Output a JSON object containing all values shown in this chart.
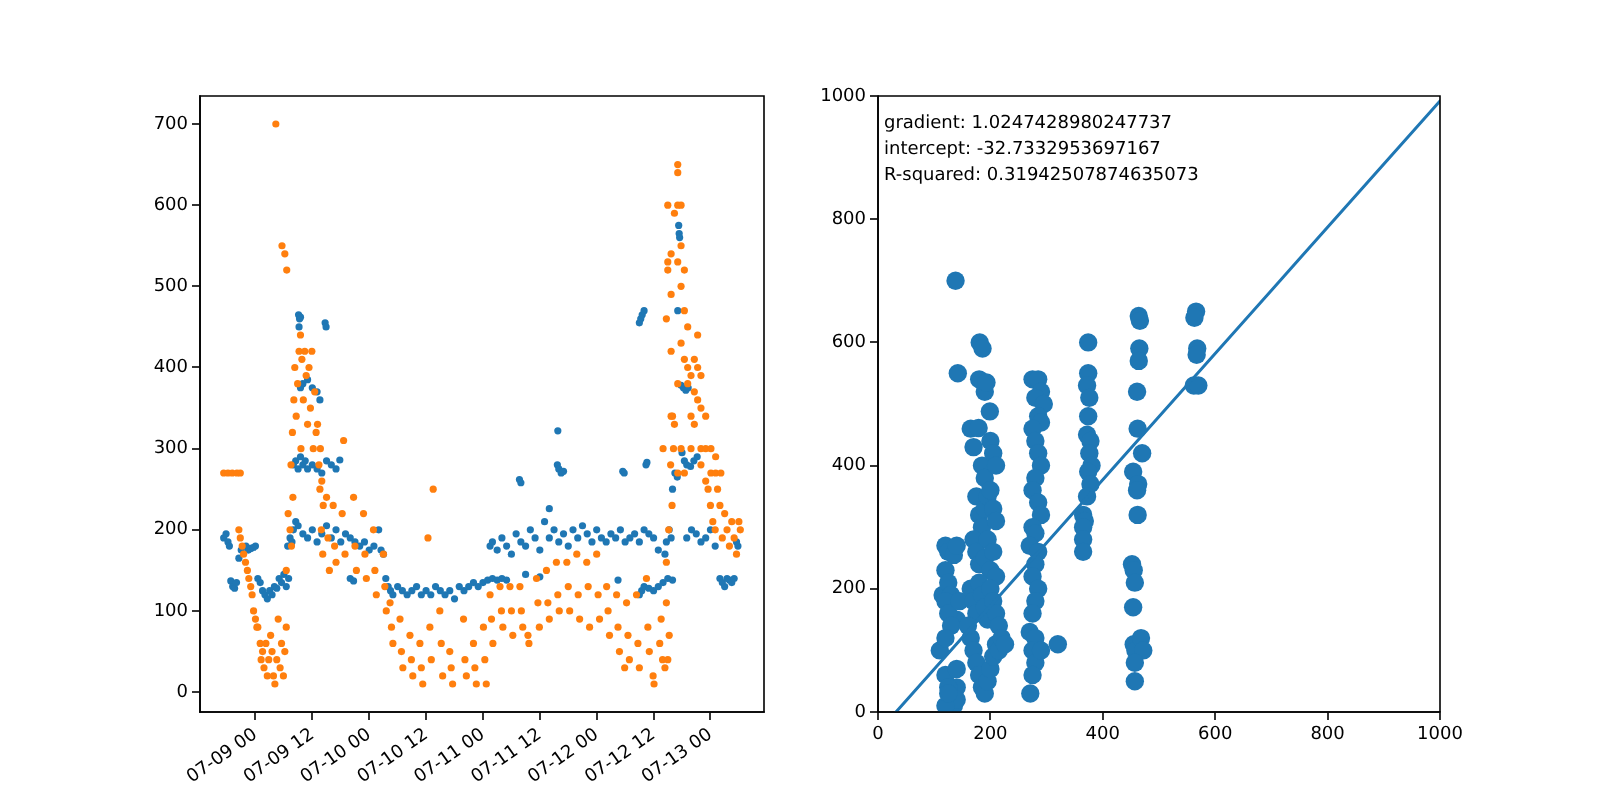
{
  "chart_data": [
    {
      "type": "scatter",
      "xlim": [
        "--07-08T12:18",
        "--07-13T11:18"
      ],
      "xticks": [
        {
          "value": "--07-09T00:00",
          "label": "07-09 00"
        },
        {
          "value": "--07-09T12:00",
          "label": "07-09 12"
        },
        {
          "value": "--07-10T00:00",
          "label": "07-10 00"
        },
        {
          "value": "--07-10T12:00",
          "label": "07-10 12"
        },
        {
          "value": "--07-11T00:00",
          "label": "07-11 00"
        },
        {
          "value": "--07-11T12:00",
          "label": "07-11 12"
        },
        {
          "value": "--07-12T00:00",
          "label": "07-12 00"
        },
        {
          "value": "--07-12T12:00",
          "label": "07-12 12"
        },
        {
          "value": "--07-13T00:00",
          "label": "07-13 00"
        }
      ],
      "ylim": [
        -24.5,
        734.5
      ],
      "yticks": [
        0,
        100,
        200,
        300,
        400,
        500,
        600,
        700
      ],
      "marker": "circle",
      "series": [
        {
          "color": "#1f77b4",
          "x": [
            "--07-08T17:18",
            "--07-08T17:48",
            "--07-08T18:12",
            "--07-08T18:30",
            "--07-08T18:48",
            "--07-08T19:12",
            "--07-08T19:36",
            "--07-08T20:00",
            "--07-08T20:30",
            "--07-08T21:00",
            "--07-08T22:00",
            "--07-08T22:30",
            "--07-08T23:00",
            "--07-08T23:30",
            "--07-09T00:00",
            "--07-09T00:30",
            "--07-09T01:00",
            "--07-09T01:30",
            "--07-09T02:00",
            "--07-09T02:30",
            "--07-09T03:00",
            "--07-09T03:30",
            "--07-09T04:00",
            "--07-09T04:30",
            "--07-09T05:00",
            "--07-09T05:30",
            "--07-09T06:00",
            "--07-09T06:30",
            "--07-09T07:00",
            "--07-09T06:48",
            "--07-09T07:18",
            "--07-09T07:42",
            "--07-09T08:00",
            "--07-09T08:30",
            "--07-09T09:00",
            "--07-09T08:00",
            "--07-09T08:30",
            "--07-09T09:00",
            "--07-09T09:30",
            "--07-09T10:00",
            "--07-09T10:30",
            "--07-09T11:00",
            "--07-09T12:00",
            "--07-09T13:00",
            "--07-09T14:00",
            "--07-09T15:00",
            "--07-09T16:00",
            "--07-09T17:00",
            "--07-09T17:48",
            "--07-09T09:06",
            "--07-09T09:18",
            "--07-09T09:30",
            "--07-09T09:12",
            "--07-09T14:42",
            "--07-09T14:54",
            "--07-09T09:30",
            "--07-09T10:00",
            "--07-09T11:00",
            "--07-09T12:00",
            "--07-09T13:00",
            "--07-09T13:36",
            "--07-09T10:00",
            "--07-09T11:00",
            "--07-09T12:00",
            "--07-09T13:00",
            "--07-09T14:00",
            "--07-09T15:00",
            "--07-09T16:00",
            "--07-09T17:00",
            "--07-09T18:00",
            "--07-09T19:00",
            "--07-09T20:00",
            "--07-09T21:00",
            "--07-09T22:00",
            "--07-09T23:00",
            "--07-10T00:00",
            "--07-10T01:00",
            "--07-10T02:00",
            "--07-10T02:30",
            "--07-10T03:00",
            "--07-09T20:00",
            "--07-09T20:42",
            "--07-10T03:30",
            "--07-10T04:00",
            "--07-10T04:30",
            "--07-10T05:00",
            "--07-10T06:00",
            "--07-10T07:00",
            "--07-10T08:00",
            "--07-10T09:00",
            "--07-10T10:00",
            "--07-10T11:00",
            "--07-10T12:00",
            "--07-10T13:00",
            "--07-10T14:00",
            "--07-10T15:00",
            "--07-10T16:00",
            "--07-10T17:00",
            "--07-10T18:00",
            "--07-10T19:00",
            "--07-10T20:00",
            "--07-10T21:00",
            "--07-10T22:00",
            "--07-10T23:00",
            "--07-11T00:00",
            "--07-11T01:00",
            "--07-11T02:00",
            "--07-11T03:00",
            "--07-11T04:00",
            "--07-11T05:00",
            "--07-11T01:30",
            "--07-11T02:00",
            "--07-11T03:00",
            "--07-11T04:00",
            "--07-11T05:00",
            "--07-11T06:00",
            "--07-11T07:00",
            "--07-11T08:00",
            "--07-11T09:00",
            "--07-11T10:00",
            "--07-11T11:00",
            "--07-11T12:00",
            "--07-11T13:00",
            "--07-11T14:00",
            "--07-11T15:00",
            "--07-11T16:00",
            "--07-11T17:00",
            "--07-11T18:00",
            "--07-11T19:00",
            "--07-11T20:00",
            "--07-11T21:00",
            "--07-11T22:00",
            "--07-11T23:00",
            "--07-12T00:00",
            "--07-12T01:00",
            "--07-12T02:00",
            "--07-12T03:00",
            "--07-12T04:00",
            "--07-12T05:00",
            "--07-12T06:00",
            "--07-12T07:00",
            "--07-12T08:00",
            "--07-12T09:00",
            "--07-12T10:00",
            "--07-12T11:00",
            "--07-12T12:00",
            "--07-12T13:00",
            "--07-11T07:42",
            "--07-11T08:00",
            "--07-11T15:48",
            "--07-11T15:42",
            "--07-11T16:00",
            "--07-11T16:30",
            "--07-11T17:00",
            "--07-12T05:30",
            "--07-12T05:48",
            "--07-12T10:24",
            "--07-12T10:36",
            "--07-11T12:00",
            "--07-11T14:00",
            "--07-11T09:00",
            "--07-12T04:30",
            "--07-12T09:00",
            "--07-12T09:30",
            "--07-12T10:00",
            "--07-12T11:00",
            "--07-12T12:00",
            "--07-12T13:00",
            "--07-12T14:00",
            "--07-12T15:00",
            "--07-12T16:00",
            "--07-12T09:00",
            "--07-12T09:18",
            "--07-12T09:36",
            "--07-12T10:00",
            "--07-12T17:18",
            "--07-12T17:24",
            "--07-12T17:30",
            "--07-12T17:06",
            "--07-12T17:48",
            "--07-12T18:18",
            "--07-12T18:48",
            "--07-12T19:18",
            "--07-12T18:00",
            "--07-12T18:30",
            "--07-12T19:00",
            "--07-12T19:48",
            "--07-12T20:30",
            "--07-12T21:12",
            "--07-12T14:24",
            "--07-12T14:42",
            "--07-12T15:18",
            "--07-12T15:42",
            "--07-12T16:00",
            "--07-12T16:30",
            "--07-12T17:00",
            "--07-12T19:00",
            "--07-12T20:00",
            "--07-12T21:00",
            "--07-12T22:00",
            "--07-12T23:00",
            "--07-13T00:00",
            "--07-13T01:00",
            "--07-13T02:00",
            "--07-13T02:30",
            "--07-13T03:00",
            "--07-13T03:30",
            "--07-13T04:00",
            "--07-13T04:30",
            "--07-13T05:00",
            "--07-13T05:30",
            "--07-13T05:48"
          ],
          "values": [
            190,
            195,
            185,
            180,
            137,
            130,
            128,
            135,
            165,
            175,
            180,
            175,
            177,
            178,
            180,
            140,
            135,
            125,
            120,
            115,
            125,
            120,
            130,
            128,
            140,
            135,
            145,
            130,
            140,
            180,
            190,
            185,
            200,
            210,
            205,
            280,
            285,
            275,
            290,
            280,
            285,
            275,
            280,
            275,
            270,
            285,
            280,
            275,
            286,
            465,
            460,
            462,
            450,
            455,
            450,
            375,
            380,
            385,
            375,
            370,
            360,
            195,
            190,
            200,
            185,
            195,
            205,
            190,
            200,
            185,
            195,
            190,
            185,
            180,
            185,
            175,
            180,
            200,
            175,
            170,
            140,
            137,
            140,
            130,
            125,
            120,
            130,
            125,
            120,
            125,
            130,
            120,
            125,
            120,
            130,
            125,
            120,
            125,
            115,
            130,
            125,
            130,
            135,
            130,
            135,
            138,
            140,
            138,
            140,
            138,
            180,
            185,
            175,
            190,
            180,
            170,
            195,
            185,
            180,
            200,
            190,
            175,
            210,
            190,
            200,
            185,
            195,
            180,
            200,
            190,
            205,
            195,
            185,
            200,
            190,
            185,
            195,
            190,
            200,
            185,
            190,
            195,
            185,
            200,
            195,
            190,
            175,
            262,
            258,
            322,
            280,
            275,
            270,
            272,
            272,
            270,
            280,
            283,
            142,
            226,
            145,
            138,
            120,
            125,
            130,
            128,
            125,
            130,
            135,
            140,
            138,
            455,
            460,
            465,
            470,
            575,
            565,
            560,
            470,
            378,
            375,
            372,
            375,
            295,
            285,
            280,
            278,
            285,
            290,
            170,
            185,
            200,
            190,
            250,
            270,
            265,
            190,
            200,
            195,
            185,
            190,
            200,
            180,
            140,
            135,
            130,
            140,
            138,
            135,
            140,
            185,
            180
          ]
        },
        {
          "color": "#ff7f0e",
          "x": [
            "--07-08T17:18",
            "--07-08T18:12",
            "--07-08T19:06",
            "--07-08T20:06",
            "--07-08T20:48",
            "--07-08T20:30",
            "--07-08T20:48",
            "--07-08T21:12",
            "--07-08T21:30",
            "--07-08T21:54",
            "--07-08T22:18",
            "--07-08T22:36",
            "--07-08T23:00",
            "--07-08T23:18",
            "--07-08T23:36",
            "--07-09T00:00",
            "--07-09T00:18",
            "--07-09T00:30",
            "--07-09T01:00",
            "--07-09T01:12",
            "--07-09T01:30",
            "--07-09T01:48",
            "--07-09T02:12",
            "--07-09T02:30",
            "--07-09T02:48",
            "--07-09T03:12",
            "--07-09T03:30",
            "--07-09T03:48",
            "--07-09T04:06",
            "--07-09T04:30",
            "--07-09T04:48",
            "--07-09T05:12",
            "--07-09T05:30",
            "--07-09T05:54",
            "--07-09T06:12",
            "--07-09T06:30",
            "--07-09T04:18",
            "--07-09T05:36",
            "--07-09T06:12",
            "--07-09T06:36",
            "--07-09T06:30",
            "--07-09T06:54",
            "--07-09T07:18",
            "--07-09T07:36",
            "--07-09T07:54",
            "--07-09T07:30",
            "--07-09T07:48",
            "--07-09T08:06",
            "--07-09T08:18",
            "--07-09T08:36",
            "--07-09T08:54",
            "--07-09T09:12",
            "--07-09T09:30",
            "--07-09T09:36",
            "--07-09T09:48",
            "--07-09T10:06",
            "--07-09T10:24",
            "--07-09T10:42",
            "--07-09T11:00",
            "--07-09T11:18",
            "--07-09T11:36",
            "--07-09T11:54",
            "--07-09T12:12",
            "--07-09T12:30",
            "--07-09T12:48",
            "--07-09T13:06",
            "--07-09T13:24",
            "--07-09T13:42",
            "--07-09T14:00",
            "--07-09T14:18",
            "--07-09T13:36",
            "--07-09T13:54",
            "--07-09T14:12",
            "--07-09T15:00",
            "--07-09T15:18",
            "--07-09T15:36",
            "--07-09T16:24",
            "--07-09T16:42",
            "--07-09T17:00",
            "--07-09T18:18",
            "--07-09T18:36",
            "--07-09T18:54",
            "--07-09T20:42",
            "--07-09T21:00",
            "--07-09T21:18",
            "--07-09T22:48",
            "--07-09T23:06",
            "--07-09T23:24",
            "--07-10T00:54",
            "--07-10T01:12",
            "--07-10T01:30",
            "--07-10T03:00",
            "--07-10T03:18",
            "--07-10T03:36",
            "--07-10T04:24",
            "--07-10T04:42",
            "--07-10T05:00",
            "--07-10T06:30",
            "--07-10T06:48",
            "--07-10T07:06",
            "--07-10T08:36",
            "--07-10T08:54",
            "--07-10T09:12",
            "--07-10T10:42",
            "--07-10T11:00",
            "--07-10T11:18",
            "--07-10T12:24",
            "--07-10T13:30",
            "--07-10T12:48",
            "--07-10T13:06",
            "--07-10T14:54",
            "--07-10T15:12",
            "--07-10T15:30",
            "--07-10T17:00",
            "--07-10T17:18",
            "--07-10T17:36",
            "--07-10T19:54",
            "--07-10T20:12",
            "--07-10T20:30",
            "--07-10T22:00",
            "--07-10T22:18",
            "--07-10T22:36",
            "--07-11T00:06",
            "--07-11T00:24",
            "--07-11T00:42",
            "--07-11T01:30",
            "--07-11T01:48",
            "--07-11T02:06",
            "--07-11T03:36",
            "--07-11T03:54",
            "--07-11T04:12",
            "--07-11T05:42",
            "--07-11T06:00",
            "--07-11T06:18",
            "--07-11T07:48",
            "--07-11T08:06",
            "--07-11T08:24",
            "--07-11T09:30",
            "--07-11T09:42",
            "--07-11T11:18",
            "--07-11T11:36",
            "--07-11T11:54",
            "--07-11T13:24",
            "--07-11T13:42",
            "--07-11T14:00",
            "--07-11T15:30",
            "--07-11T15:48",
            "--07-11T16:06",
            "--07-11T17:42",
            "--07-11T18:00",
            "--07-11T18:18",
            "--07-11T19:48",
            "--07-11T20:06",
            "--07-11T20:24",
            "--07-11T21:54",
            "--07-11T22:12",
            "--07-11T22:30",
            "--07-12T00:00",
            "--07-12T00:18",
            "--07-12T00:36",
            "--07-12T02:06",
            "--07-12T02:24",
            "--07-12T02:42",
            "--07-12T04:12",
            "--07-12T04:30",
            "--07-12T04:48",
            "--07-12T05:54",
            "--07-12T06:18",
            "--07-12T06:36",
            "--07-12T06:54",
            "--07-12T08:24",
            "--07-12T08:42",
            "--07-12T09:00",
            "--07-12T10:30",
            "--07-12T10:48",
            "--07-12T11:06",
            "--07-12T11:54",
            "--07-12T12:06",
            "--07-12T13:18",
            "--07-12T13:36",
            "--07-12T13:54",
            "--07-12T14:24",
            "--07-12T14:42",
            "--07-12T15:00",
            "--07-12T15:18",
            "--07-12T14:42",
            "--07-12T15:12",
            "--07-12T15:36",
            "--07-12T16:00",
            "--07-12T16:12",
            "--07-12T15:54",
            "--07-12T14:00",
            "--07-12T14:42",
            "--07-12T15:00",
            "--07-12T15:00",
            "--07-12T15:00",
            "--07-12T15:42",
            "--07-12T15:42",
            "--07-12T15:42",
            "--07-12T15:42",
            "--07-12T16:24",
            "--07-12T16:24",
            "--07-12T17:06",
            "--07-12T17:06",
            "--07-12T17:06",
            "--07-12T17:06",
            "--07-12T17:06",
            "--07-12T17:06",
            "--07-12T17:48",
            "--07-12T17:48",
            "--07-12T17:48",
            "--07-12T17:48",
            "--07-12T17:48",
            "--07-12T18:30",
            "--07-12T18:30",
            "--07-12T18:30",
            "--07-12T18:30",
            "--07-12T19:12",
            "--07-12T19:12",
            "--07-12T19:12",
            "--07-12T19:54",
            "--07-12T19:54",
            "--07-12T19:54",
            "--07-12T20:36",
            "--07-12T20:36",
            "--07-12T20:36",
            "--07-12T21:18",
            "--07-12T21:18",
            "--07-12T21:18",
            "--07-12T22:00",
            "--07-12T22:00",
            "--07-12T22:00",
            "--07-12T22:00",
            "--07-12T23:00",
            "--07-12T23:00",
            "--07-12T23:00",
            "--07-13T00:06",
            "--07-13T00:06",
            "--07-13T01:06",
            "--07-13T01:06",
            "--07-13T02:12",
            "--07-12T23:30",
            "--07-13T00:00",
            "--07-13T00:30",
            "--07-13T01:00",
            "--07-13T01:30",
            "--07-13T02:00",
            "--07-13T02:30",
            "--07-13T03:00",
            "--07-13T03:30",
            "--07-13T04:00",
            "--07-13T04:30",
            "--07-13T05:00",
            "--07-13T05:30",
            "--07-13T06:00",
            "--07-13T06:18"
          ],
          "values": [
            270,
            270,
            270,
            270,
            270,
            200,
            190,
            180,
            170,
            160,
            150,
            140,
            130,
            120,
            100,
            90,
            80,
            80,
            60,
            40,
            50,
            30,
            60,
            20,
            40,
            70,
            50,
            20,
            10,
            40,
            90,
            30,
            60,
            20,
            50,
            80,
            700,
            550,
            540,
            520,
            150,
            220,
            200,
            180,
            240,
            280,
            320,
            360,
            400,
            340,
            380,
            420,
            440,
            300,
            410,
            360,
            420,
            390,
            330,
            400,
            350,
            420,
            300,
            370,
            320,
            330,
            280,
            300,
            260,
            230,
            250,
            200,
            170,
            240,
            190,
            150,
            230,
            180,
            160,
            220,
            310,
            170,
            240,
            180,
            150,
            220,
            170,
            140,
            200,
            150,
            120,
            170,
            130,
            100,
            110,
            80,
            60,
            90,
            50,
            30,
            70,
            40,
            20,
            60,
            30,
            10,
            190,
            250,
            80,
            40,
            100,
            60,
            20,
            50,
            30,
            10,
            90,
            40,
            20,
            60,
            30,
            10,
            80,
            40,
            10,
            120,
            90,
            60,
            130,
            100,
            80,
            130,
            100,
            70,
            130,
            100,
            80,
            70,
            60,
            140,
            110,
            80,
            150,
            110,
            90,
            160,
            120,
            100,
            160,
            130,
            100,
            170,
            120,
            90,
            160,
            130,
            80,
            170,
            120,
            90,
            130,
            100,
            70,
            120,
            80,
            50,
            30,
            110,
            70,
            40,
            120,
            60,
            30,
            140,
            80,
            50,
            20,
            10,
            60,
            90,
            40,
            30,
            110,
            40,
            70,
            160,
            200,
            280,
            340,
            300,
            230,
            300,
            460,
            600,
            530,
            520,
            490,
            420,
            340,
            540,
            590,
            330,
            650,
            640,
            600,
            530,
            380,
            270,
            600,
            550,
            500,
            430,
            300,
            520,
            470,
            410,
            270,
            450,
            400,
            380,
            390,
            340,
            300,
            410,
            370,
            330,
            440,
            400,
            360,
            390,
            350,
            300,
            280,
            340,
            300,
            260,
            300,
            270,
            290,
            270,
            270,
            250,
            230,
            210,
            200,
            250,
            230,
            190,
            220,
            200,
            180,
            210,
            190,
            170,
            210,
            200
          ]
        }
      ]
    },
    {
      "type": "scatter",
      "xlim": [
        0,
        1000
      ],
      "xticks": [
        0,
        200,
        400,
        600,
        800,
        1000
      ],
      "ylim": [
        0,
        1000
      ],
      "yticks": [
        0,
        200,
        400,
        600,
        800,
        1000
      ],
      "marker": "circle",
      "annotations": [
        "gradient: 1.0247428980247737",
        "intercept: -32.7332953697167",
        "R-squared: 0.31942507874635073"
      ],
      "series": [
        {
          "color": "#1f77b4",
          "x": [
            110,
            115,
            120,
            125,
            135,
            140,
            120,
            125,
            130,
            140,
            120,
            125,
            130,
            120,
            140,
            120,
            125,
            135,
            140,
            120,
            125,
            140,
            145,
            138,
            142,
            165,
            170,
            185,
            190,
            200,
            205,
            210,
            175,
            180,
            185,
            190,
            195,
            200,
            205,
            210,
            170,
            175,
            180,
            190,
            195,
            200,
            205,
            210,
            165,
            170,
            175,
            180,
            185,
            190,
            195,
            200,
            205,
            210,
            215,
            165,
            170,
            175,
            180,
            185,
            190,
            195,
            200,
            205,
            210,
            215,
            220,
            226,
            160,
            181,
            186,
            180,
            190,
            193,
            199,
            179,
            275,
            285,
            290,
            280,
            295,
            285,
            290,
            275,
            280,
            285,
            290,
            280,
            275,
            285,
            290,
            275,
            280,
            270,
            285,
            280,
            275,
            285,
            280,
            275,
            270,
            280,
            275,
            280,
            290,
            271,
            275,
            320,
            374,
            374,
            372,
            376,
            374,
            372,
            378,
            376,
            380,
            374,
            378,
            372,
            365,
            368,
            365,
            365,
            365,
            464,
            466,
            465,
            464,
            461,
            462,
            454,
            470,
            463,
            461,
            462,
            452,
            455,
            457,
            454,
            455,
            458,
            468,
            472,
            457,
            457,
            566,
            563,
            568,
            567,
            562,
            570
          ],
          "values": [
            100,
            190,
            270,
            260,
            255,
            270,
            230,
            210,
            190,
            150,
            180,
            160,
            140,
            120,
            40,
            60,
            40,
            10,
            20,
            10,
            30,
            70,
            180,
            700,
            550,
            460,
            430,
            400,
            380,
            440,
            420,
            400,
            350,
            320,
            300,
            330,
            350,
            360,
            330,
            310,
            280,
            260,
            240,
            250,
            280,
            230,
            260,
            220,
            200,
            180,
            160,
            210,
            190,
            170,
            150,
            200,
            180,
            160,
            140,
            120,
            100,
            80,
            60,
            40,
            30,
            50,
            70,
            90,
            110,
            100,
            120,
            110,
            140,
            600,
            590,
            540,
            520,
            535,
            488,
            461,
            540,
            540,
            520,
            510,
            500,
            480,
            470,
            460,
            440,
            420,
            400,
            380,
            360,
            340,
            320,
            300,
            290,
            270,
            260,
            240,
            220,
            200,
            180,
            160,
            130,
            120,
            100,
            80,
            100,
            30,
            60,
            110,
            600,
            550,
            530,
            510,
            480,
            450,
            440,
            420,
            400,
            390,
            370,
            350,
            320,
            310,
            300,
            280,
            260,
            643,
            635,
            590,
            570,
            520,
            460,
            390,
            420,
            370,
            360,
            320,
            240,
            230,
            210,
            170,
            110,
            100,
            120,
            100,
            80,
            50,
            650,
            640,
            590,
            580,
            530,
            530
          ]
        },
        {
          "type": "line",
          "color": "#1f77b4",
          "marker": "none",
          "x": [
            32,
            1000
          ],
          "values": [
            0,
            992
          ]
        }
      ]
    }
  ]
}
